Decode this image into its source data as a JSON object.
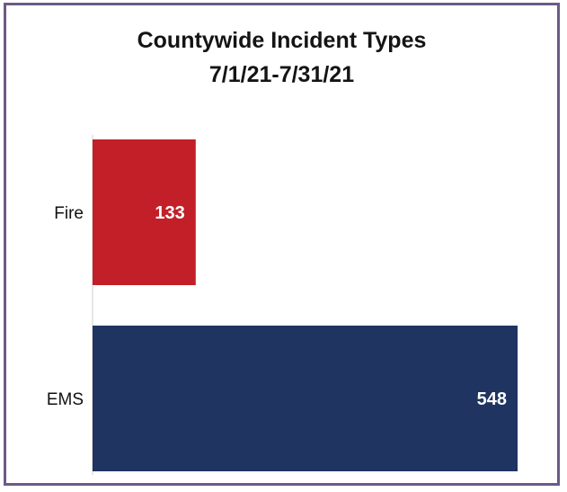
{
  "chart_data": {
    "type": "bar",
    "orientation": "horizontal",
    "title": "Countywide Incident Types",
    "subtitle": "7/1/21-7/31/21",
    "xlabel": "",
    "ylabel": "",
    "categories": [
      "Fire",
      "EMS"
    ],
    "values": [
      133,
      548
    ],
    "data_labels": [
      "133",
      "548"
    ],
    "xlim": [
      0,
      548
    ],
    "grid": false,
    "legend": "none",
    "colors": {
      "Fire": "#c21f28",
      "EMS": "#1f3461"
    }
  }
}
